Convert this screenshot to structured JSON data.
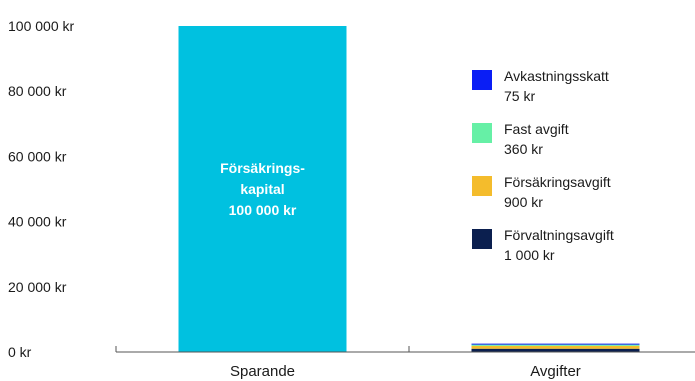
{
  "chart_data": {
    "type": "bar",
    "categories": [
      "Sparande",
      "Avgifter"
    ],
    "ylim": [
      0,
      100000
    ],
    "yticks": [
      {
        "value": 0,
        "label": "0 kr"
      },
      {
        "value": 20000,
        "label": "20 000 kr"
      },
      {
        "value": 40000,
        "label": "40 000 kr"
      },
      {
        "value": 60000,
        "label": "60 000 kr"
      },
      {
        "value": 80000,
        "label": "80 000 kr"
      },
      {
        "value": 100000,
        "label": "100 000 kr"
      }
    ],
    "grid": false,
    "bars": [
      {
        "category": "Sparande",
        "segments": [
          {
            "name": "Försäkrings-kapital",
            "value": 100000,
            "color": "#00C1E0",
            "label_lines": [
              "Försäkrings-",
              "kapital",
              "100 000 kr"
            ]
          }
        ]
      },
      {
        "category": "Avgifter",
        "segments": [
          {
            "name": "Förvaltningsavgift",
            "value": 1000,
            "color": "#0B1F4F"
          },
          {
            "name": "Försäkringsavgift",
            "value": 900,
            "color": "#F4BC2C"
          },
          {
            "name": "Fast avgift",
            "value": 360,
            "color": "#66F0A6"
          },
          {
            "name": "Avkastningsskatt",
            "value": 75,
            "color": "#0A1EF5"
          }
        ]
      }
    ],
    "legend": {
      "placement": "right",
      "items": [
        {
          "name": "Avkastningsskatt",
          "amount": "75 kr",
          "color": "#0A1EF5"
        },
        {
          "name": "Fast avgift",
          "amount": "360 kr",
          "color": "#66F0A6"
        },
        {
          "name": "Försäkringsavgift",
          "amount": "900 kr",
          "color": "#F4BC2C"
        },
        {
          "name": "Förvaltningsavgift",
          "amount": "1 000 kr",
          "color": "#0B1F4F"
        }
      ]
    }
  }
}
